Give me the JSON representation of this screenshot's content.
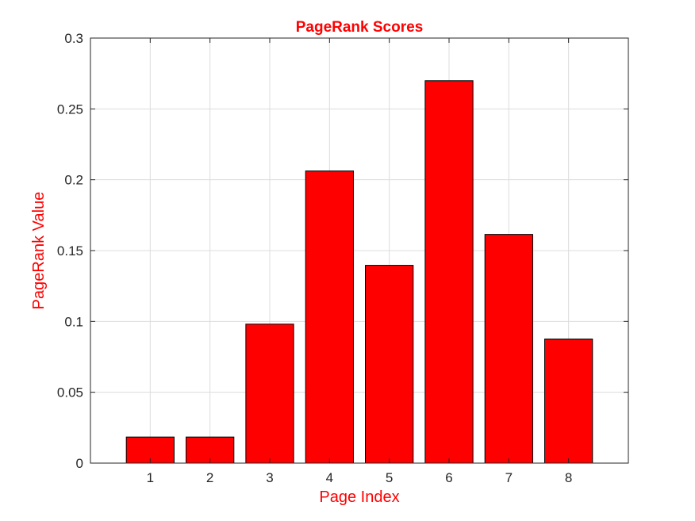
{
  "colors": {
    "bar_fill": "#ff0000",
    "bar_stroke": "#000000",
    "label_color": "#ff0000",
    "axis_color": "#262626",
    "grid_color": "#dcdcdc"
  },
  "chart_data": {
    "type": "bar",
    "title": "PageRank Scores",
    "xlabel": "Page Index",
    "ylabel": "PageRank Value",
    "categories": [
      "1",
      "2",
      "3",
      "4",
      "5",
      "6",
      "7",
      "8"
    ],
    "values": [
      0.0184,
      0.0184,
      0.0981,
      0.2062,
      0.1396,
      0.2699,
      0.1614,
      0.0876
    ],
    "xlim": [
      0,
      9
    ],
    "ylim": [
      0,
      0.3
    ],
    "yticks": [
      0,
      0.05,
      0.1,
      0.15,
      0.2,
      0.25,
      0.3
    ],
    "ytick_labels": [
      "0",
      "0.05",
      "0.1",
      "0.15",
      "0.2",
      "0.25",
      "0.3"
    ],
    "grid": true,
    "box": true
  }
}
